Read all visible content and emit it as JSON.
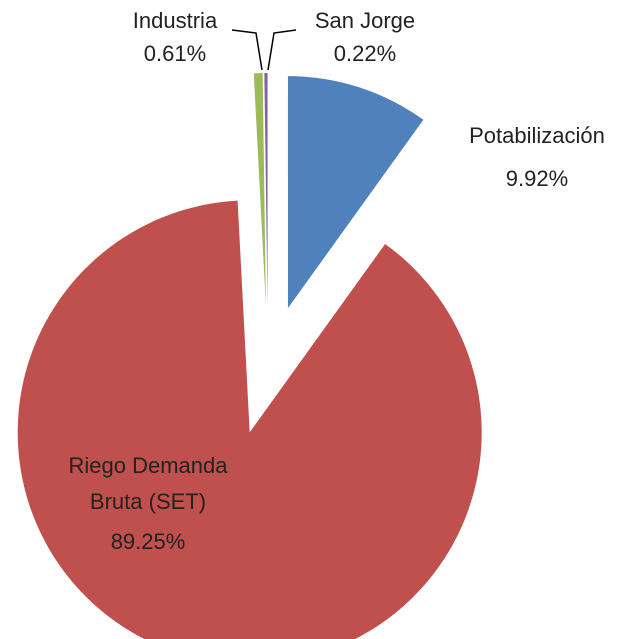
{
  "chart_data": {
    "type": "pie",
    "categories": [
      "Potabilización",
      "Riego Demanda Bruta (SET)",
      "Industria",
      "San Jorge"
    ],
    "values": [
      9.92,
      89.25,
      0.61,
      0.22
    ],
    "value_labels": [
      "9.92%",
      "89.25%",
      "0.61%",
      "0.22%"
    ],
    "colors": [
      "#4f81bd",
      "#c0504d",
      "#9bbb59",
      "#8064a2"
    ]
  }
}
